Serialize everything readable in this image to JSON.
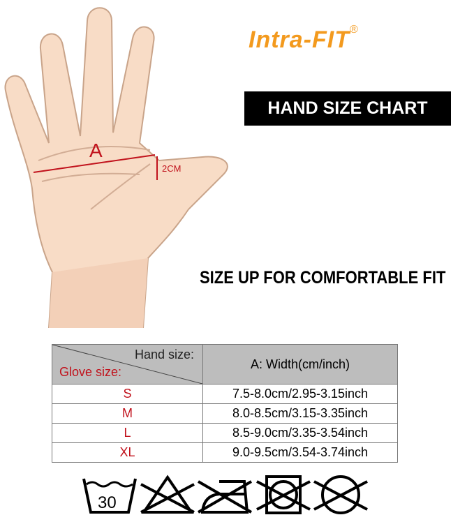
{
  "brand": {
    "name": "Intra-FIT",
    "mark": "®"
  },
  "title": "HAND SIZE CHART",
  "tip": "SIZE UP FOR COMFORTABLE FIT",
  "diagram": {
    "label_a": "A",
    "label_2cm": "2CM"
  },
  "table": {
    "corner_top": "Hand size:",
    "corner_bottom": "Glove size:",
    "header": "A: Width(cm/inch)",
    "rows": [
      {
        "size": "S",
        "width": "7.5-8.0cm/2.95-3.15inch"
      },
      {
        "size": "M",
        "width": "8.0-8.5cm/3.15-3.35inch"
      },
      {
        "size": "L",
        "width": "8.5-9.0cm/3.35-3.54inch"
      },
      {
        "size": "XL",
        "width": "9.0-9.5cm/3.54-3.74inch"
      }
    ]
  },
  "care": {
    "wash_temp": "30",
    "icons": [
      "wash-30-icon",
      "no-bleach-icon",
      "no-iron-icon",
      "no-tumble-dry-icon",
      "no-dry-clean-icon"
    ]
  },
  "colors": {
    "brand": "#f39a1e",
    "size_text": "#c1121c",
    "header_bg": "#bdbdbd",
    "skin": "#f8dcc6"
  }
}
